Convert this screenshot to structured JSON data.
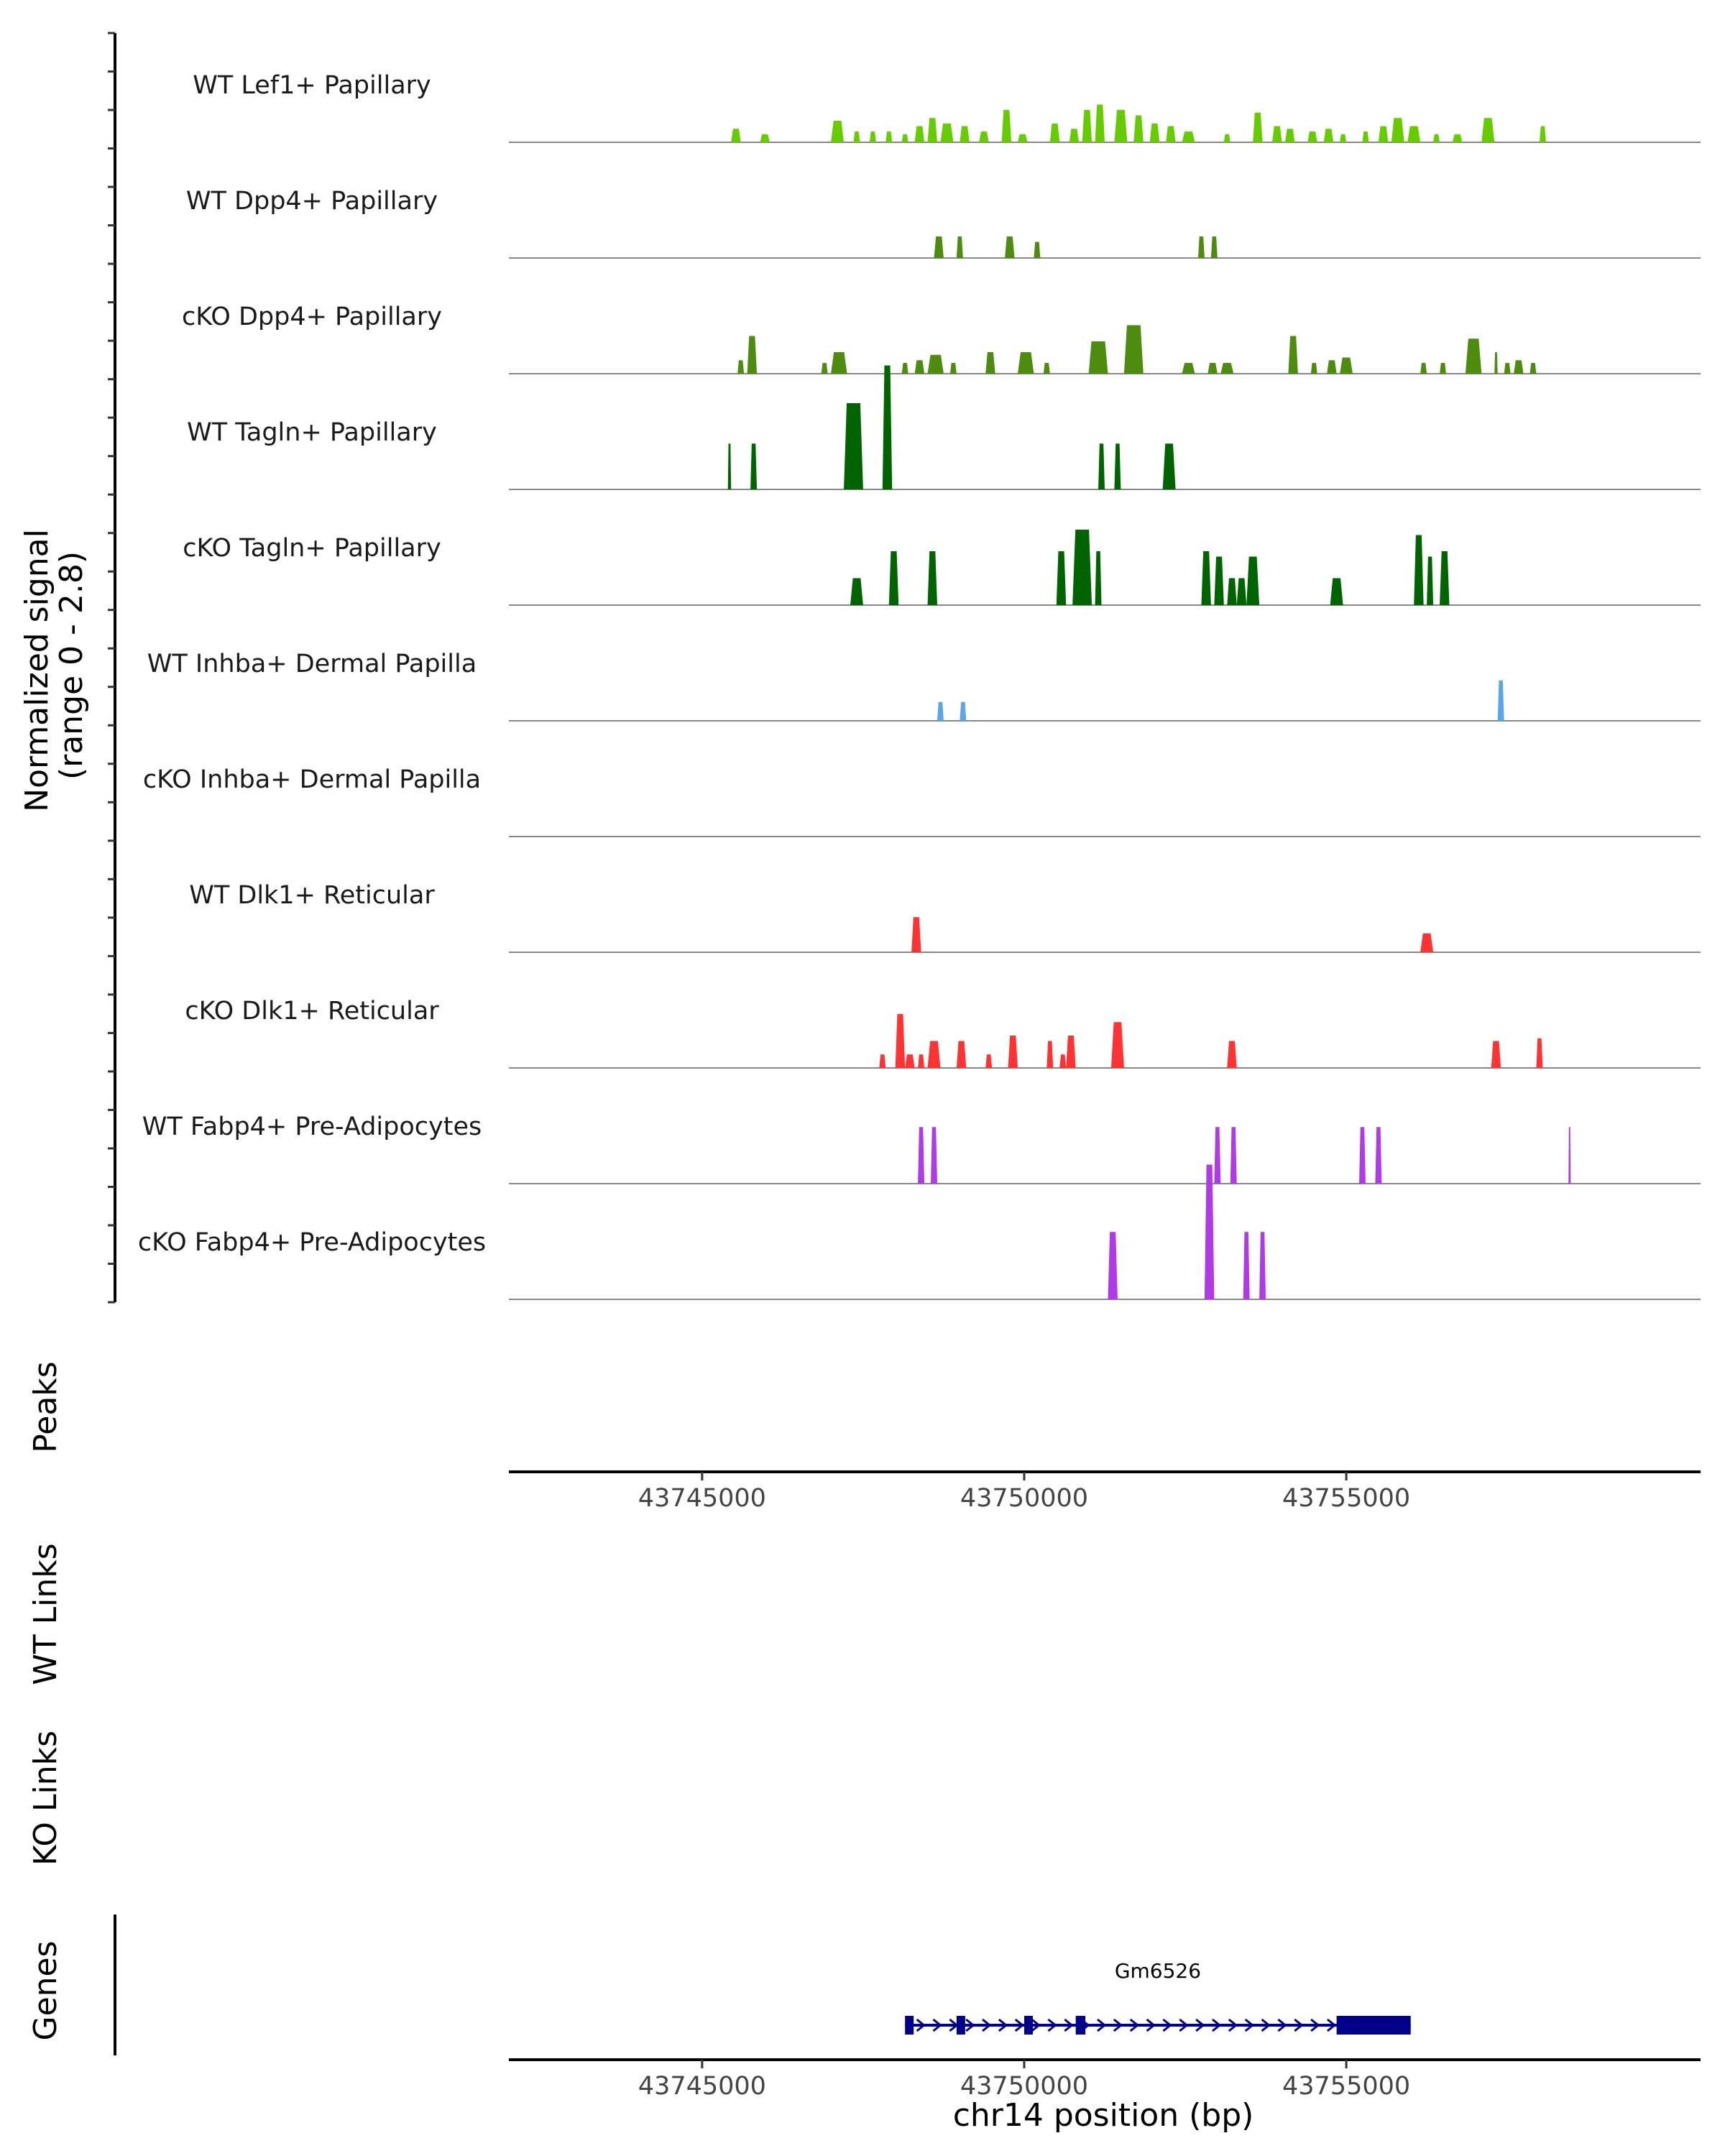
{
  "chart_data": {
    "type": "area",
    "chromosome": "chr14",
    "xlim": [
      43742000,
      43760500
    ],
    "signal_range": [
      0,
      2.8
    ],
    "y_axis_label_line1": "Normalized signal",
    "y_axis_label_line2": "(range 0 - 2.8)",
    "x_axis_title": "chr14 position (bp)",
    "x_ticks": [
      {
        "value": 43745000,
        "label": "43745000"
      },
      {
        "value": 43750000,
        "label": "43750000"
      },
      {
        "value": 43755000,
        "label": "43755000"
      }
    ],
    "panel_labels": {
      "peaks": "Peaks",
      "wt_links": "WT Links",
      "ko_links": "KO Links",
      "genes": "Genes"
    },
    "tracks": [
      {
        "name": "WT Lef1+ Papillary",
        "color": "#66CC00",
        "peaks": [
          [
            43745450,
            43745600,
            0.25
          ],
          [
            43745900,
            43746050,
            0.15
          ],
          [
            43747000,
            43747200,
            0.4
          ],
          [
            43747350,
            43747450,
            0.2
          ],
          [
            43747600,
            43747700,
            0.2
          ],
          [
            43747850,
            43747950,
            0.2
          ],
          [
            43748100,
            43748200,
            0.15
          ],
          [
            43748300,
            43748450,
            0.3
          ],
          [
            43748500,
            43748650,
            0.45
          ],
          [
            43748700,
            43748900,
            0.35
          ],
          [
            43749000,
            43749150,
            0.3
          ],
          [
            43749300,
            43749450,
            0.2
          ],
          [
            43749650,
            43749800,
            0.6
          ],
          [
            43749900,
            43750050,
            0.15
          ],
          [
            43750400,
            43750550,
            0.35
          ],
          [
            43750700,
            43750850,
            0.25
          ],
          [
            43750900,
            43751050,
            0.6
          ],
          [
            43751100,
            43751250,
            0.7
          ],
          [
            43751400,
            43751600,
            0.6
          ],
          [
            43751700,
            43751850,
            0.5
          ],
          [
            43751950,
            43752100,
            0.35
          ],
          [
            43752200,
            43752350,
            0.3
          ],
          [
            43752450,
            43752650,
            0.2
          ],
          [
            43753100,
            43753200,
            0.15
          ],
          [
            43753550,
            43753700,
            0.55
          ],
          [
            43753850,
            43754000,
            0.3
          ],
          [
            43754050,
            43754200,
            0.25
          ],
          [
            43754400,
            43754550,
            0.2
          ],
          [
            43754650,
            43754800,
            0.25
          ],
          [
            43754900,
            43755000,
            0.15
          ],
          [
            43755250,
            43755350,
            0.2
          ],
          [
            43755500,
            43755650,
            0.3
          ],
          [
            43755700,
            43755900,
            0.45
          ],
          [
            43755950,
            43756150,
            0.3
          ],
          [
            43756350,
            43756450,
            0.15
          ],
          [
            43756650,
            43756800,
            0.15
          ],
          [
            43757100,
            43757300,
            0.45
          ],
          [
            43758000,
            43758100,
            0.3
          ]
        ]
      },
      {
        "name": "WT Dpp4+ Papillary",
        "color": "#4D8C0F",
        "peaks": [
          [
            43748600,
            43748750,
            0.4
          ],
          [
            43748950,
            43749050,
            0.4
          ],
          [
            43749700,
            43749850,
            0.4
          ],
          [
            43750150,
            43750250,
            0.3
          ],
          [
            43752700,
            43752800,
            0.4
          ],
          [
            43752900,
            43753000,
            0.4
          ]
        ]
      },
      {
        "name": "cKO Dpp4+ Papillary",
        "color": "#4D8C0F",
        "peaks": [
          [
            43745550,
            43745650,
            0.25
          ],
          [
            43745700,
            43745850,
            0.7
          ],
          [
            43746850,
            43746950,
            0.2
          ],
          [
            43747000,
            43747250,
            0.4
          ],
          [
            43748100,
            43748200,
            0.2
          ],
          [
            43748300,
            43748450,
            0.25
          ],
          [
            43748500,
            43748750,
            0.35
          ],
          [
            43748850,
            43748950,
            0.2
          ],
          [
            43749400,
            43749550,
            0.4
          ],
          [
            43749900,
            43750150,
            0.4
          ],
          [
            43750300,
            43750400,
            0.2
          ],
          [
            43751000,
            43751300,
            0.6
          ],
          [
            43751550,
            43751850,
            0.9
          ],
          [
            43752450,
            43752650,
            0.2
          ],
          [
            43752850,
            43753000,
            0.2
          ],
          [
            43753050,
            43753250,
            0.2
          ],
          [
            43754100,
            43754250,
            0.7
          ],
          [
            43754450,
            43754550,
            0.2
          ],
          [
            43754700,
            43754850,
            0.25
          ],
          [
            43754900,
            43755100,
            0.3
          ],
          [
            43756150,
            43756250,
            0.2
          ],
          [
            43756450,
            43756550,
            0.2
          ],
          [
            43756850,
            43757100,
            0.65
          ],
          [
            43757300,
            43757350,
            0.4
          ],
          [
            43757450,
            43757550,
            0.2
          ],
          [
            43757600,
            43757750,
            0.25
          ],
          [
            43757850,
            43757950,
            0.2
          ]
        ]
      },
      {
        "name": "WT Tagln+ Papillary",
        "color": "#006400",
        "peaks": [
          [
            43745400,
            43745450,
            0.85
          ],
          [
            43745750,
            43745850,
            0.85
          ],
          [
            43747200,
            43747500,
            1.6
          ],
          [
            43747800,
            43747950,
            2.3
          ],
          [
            43751150,
            43751250,
            0.85
          ],
          [
            43751400,
            43751500,
            0.85
          ],
          [
            43752150,
            43752350,
            0.85
          ]
        ]
      },
      {
        "name": "cKO Tagln+ Papillary",
        "color": "#006400",
        "peaks": [
          [
            43747300,
            43747500,
            0.5
          ],
          [
            43747900,
            43748050,
            1.0
          ],
          [
            43748500,
            43748650,
            1.0
          ],
          [
            43750500,
            43750650,
            1.0
          ],
          [
            43750750,
            43751050,
            1.4
          ],
          [
            43751100,
            43751200,
            1.0
          ],
          [
            43752750,
            43752900,
            1.0
          ],
          [
            43752950,
            43753100,
            0.9
          ],
          [
            43753150,
            43753300,
            0.5
          ],
          [
            43753300,
            43753450,
            0.5
          ],
          [
            43753450,
            43753650,
            0.9
          ],
          [
            43754750,
            43754950,
            0.5
          ],
          [
            43756050,
            43756200,
            1.3
          ],
          [
            43756250,
            43756350,
            0.9
          ],
          [
            43756450,
            43756600,
            1.0
          ]
        ]
      },
      {
        "name": "WT Inhba+ Dermal Papilla",
        "color": "#5AA6E8",
        "peaks": [
          [
            43748650,
            43748750,
            0.35
          ],
          [
            43749000,
            43749100,
            0.35
          ],
          [
            43757350,
            43757450,
            0.75
          ]
        ]
      },
      {
        "name": "cKO Inhba+ Dermal Papilla",
        "color": "#5AA6E8",
        "peaks": []
      },
      {
        "name": "WT Dlk1+ Reticular",
        "color": "#FF3333",
        "peaks": [
          [
            43748250,
            43748400,
            0.65
          ],
          [
            43756150,
            43756350,
            0.35
          ]
        ]
      },
      {
        "name": "cKO Dlk1+ Reticular",
        "color": "#FF3333",
        "peaks": [
          [
            43747750,
            43747850,
            0.25
          ],
          [
            43748000,
            43748150,
            1.0
          ],
          [
            43748150,
            43748300,
            0.25
          ],
          [
            43748350,
            43748450,
            0.25
          ],
          [
            43748500,
            43748700,
            0.5
          ],
          [
            43748950,
            43749100,
            0.5
          ],
          [
            43749400,
            43749500,
            0.25
          ],
          [
            43749750,
            43749900,
            0.6
          ],
          [
            43750350,
            43750450,
            0.5
          ],
          [
            43750550,
            43750650,
            0.25
          ],
          [
            43750650,
            43750800,
            0.6
          ],
          [
            43751350,
            43751550,
            0.85
          ],
          [
            43753150,
            43753300,
            0.5
          ],
          [
            43757250,
            43757400,
            0.5
          ],
          [
            43757950,
            43758050,
            0.55
          ]
        ]
      },
      {
        "name": "WT Fabp4+ Pre-Adipocytes",
        "color": "#B03AE6",
        "peaks": [
          [
            43748350,
            43748450,
            1.05
          ],
          [
            43748550,
            43748650,
            1.05
          ],
          [
            43752950,
            43753050,
            1.05
          ],
          [
            43753200,
            43753300,
            1.05
          ],
          [
            43755200,
            43755300,
            1.05
          ],
          [
            43755450,
            43755550,
            1.05
          ],
          [
            43758450,
            43758480,
            1.05
          ]
        ]
      },
      {
        "name": "cKO Fabp4+ Pre-Adipocytes",
        "color": "#B03AE6",
        "peaks": [
          [
            43751300,
            43751450,
            1.25
          ],
          [
            43752800,
            43752950,
            2.5
          ],
          [
            43753400,
            43753500,
            1.25
          ],
          [
            43753650,
            43753750,
            1.25
          ]
        ]
      }
    ],
    "gene": {
      "name": "Gm6526",
      "start": 43748150,
      "end": 43756000,
      "strand": "+",
      "color": "#00008B",
      "exons": [
        [
          43748150,
          43748250
        ],
        [
          43748950,
          43749050
        ],
        [
          43750000,
          43750100
        ],
        [
          43750800,
          43750950
        ],
        [
          43754850,
          43756000
        ]
      ]
    }
  }
}
